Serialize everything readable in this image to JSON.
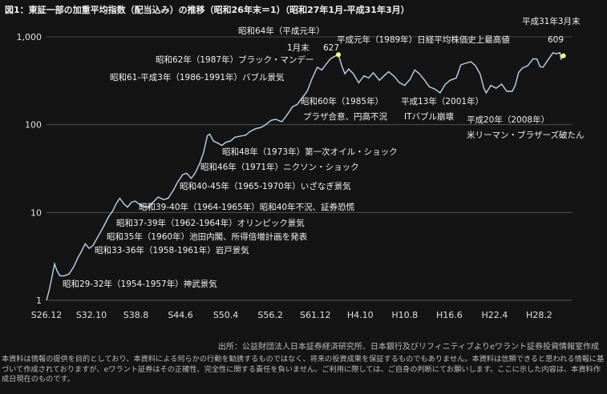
{
  "title": "図1：東証一部の加重平均指数（配当込み）の推移（昭和26年末＝1）（昭和27年1月-平成31年3月）",
  "source": "出所：公益財団法人日本証券経済研究所、日本銀行及びリフィニティブよりeワラント証券投資情報室作成",
  "disclaimer": "本資料は情報の提供を目的としており、本資料による何らかの行動を勧誘するものではなく、将来の投資成果を保証するものでもありません。本資料は信頼できると思われる情報に基づいて作成されておりますが、eワラント証券はその正確性、完全性に関する責任を負いません。ご利用に際しては、ご自身の判断にてお願いします。ここに示した内容は、本資料作成日現在のものです。",
  "colors": {
    "line": "#b8d4f0",
    "marker": "#ffff80",
    "grid": "#5a5a5a",
    "background": "#141414"
  },
  "chart_data": {
    "type": "line",
    "y_scale": "log",
    "ylim": [
      1,
      1000
    ],
    "y_ticks": [
      "1",
      "10",
      "100",
      "1,000"
    ],
    "x_ticks": [
      "S26.12",
      "S32.10",
      "S38.8",
      "S44.6",
      "S50.4",
      "S56.2",
      "S61.12",
      "H4.10",
      "H10.8",
      "H16.6",
      "H22.4",
      "H28.2"
    ],
    "series": [
      {
        "values": [
          [
            1951.96,
            1.0
          ],
          [
            1952.3,
            1.3
          ],
          [
            1952.7,
            1.9
          ],
          [
            1953.0,
            2.6
          ],
          [
            1953.3,
            2.2
          ],
          [
            1953.7,
            1.9
          ],
          [
            1954.3,
            1.9
          ],
          [
            1954.9,
            2.0
          ],
          [
            1955.5,
            2.4
          ],
          [
            1956.0,
            3.0
          ],
          [
            1956.5,
            3.6
          ],
          [
            1957.0,
            4.4
          ],
          [
            1957.5,
            3.9
          ],
          [
            1958.0,
            4.2
          ],
          [
            1958.6,
            5.2
          ],
          [
            1959.0,
            6.0
          ],
          [
            1959.6,
            7.5
          ],
          [
            1960.0,
            8.8
          ],
          [
            1960.6,
            10.5
          ],
          [
            1961.0,
            12.5
          ],
          [
            1961.5,
            14.5
          ],
          [
            1962.0,
            12.6
          ],
          [
            1962.5,
            11.5
          ],
          [
            1963.0,
            13.0
          ],
          [
            1963.5,
            13.5
          ],
          [
            1964.0,
            12.5
          ],
          [
            1964.6,
            11.8
          ],
          [
            1965.2,
            11.5
          ],
          [
            1965.8,
            13.0
          ],
          [
            1966.5,
            15.0
          ],
          [
            1967.2,
            14.0
          ],
          [
            1967.8,
            14.5
          ],
          [
            1968.5,
            18.0
          ],
          [
            1969.0,
            22.0
          ],
          [
            1969.7,
            27.0
          ],
          [
            1970.2,
            28.0
          ],
          [
            1970.8,
            24.5
          ],
          [
            1971.3,
            28.0
          ],
          [
            1971.9,
            36.0
          ],
          [
            1972.4,
            48.0
          ],
          [
            1972.9,
            75.0
          ],
          [
            1973.2,
            78.0
          ],
          [
            1973.7,
            65.0
          ],
          [
            1974.2,
            62.0
          ],
          [
            1974.8,
            58.0
          ],
          [
            1975.3,
            63.0
          ],
          [
            1975.9,
            65.0
          ],
          [
            1976.5,
            72.0
          ],
          [
            1977.2,
            74.0
          ],
          [
            1977.9,
            76.0
          ],
          [
            1978.5,
            84.0
          ],
          [
            1979.2,
            90.0
          ],
          [
            1979.9,
            93.0
          ],
          [
            1980.5,
            100.0
          ],
          [
            1981.2,
            112.0
          ],
          [
            1981.8,
            115.0
          ],
          [
            1982.6,
            108.0
          ],
          [
            1983.3,
            130.0
          ],
          [
            1984.0,
            160.0
          ],
          [
            1984.6,
            170.0
          ],
          [
            1985.2,
            200.0
          ],
          [
            1985.9,
            240.0
          ],
          [
            1986.5,
            330.0
          ],
          [
            1987.2,
            450.0
          ],
          [
            1987.8,
            420.0
          ],
          [
            1988.3,
            480.0
          ],
          [
            1988.9,
            560.0
          ],
          [
            1989.5,
            600.0
          ],
          [
            1989.96,
            627.0
          ],
          [
            1990.4,
            470.0
          ],
          [
            1990.8,
            380.0
          ],
          [
            1991.3,
            430.0
          ],
          [
            1991.9,
            380.0
          ],
          [
            1992.6,
            300.0
          ],
          [
            1993.3,
            360.0
          ],
          [
            1993.9,
            340.0
          ],
          [
            1994.5,
            390.0
          ],
          [
            1995.3,
            320.0
          ],
          [
            1995.9,
            360.0
          ],
          [
            1996.5,
            400.0
          ],
          [
            1997.3,
            350.0
          ],
          [
            1997.9,
            300.0
          ],
          [
            1998.6,
            280.0
          ],
          [
            1999.3,
            330.0
          ],
          [
            1999.9,
            420.0
          ],
          [
            2000.5,
            380.0
          ],
          [
            2001.2,
            320.0
          ],
          [
            2001.8,
            270.0
          ],
          [
            2002.5,
            255.0
          ],
          [
            2003.2,
            230.0
          ],
          [
            2003.9,
            290.0
          ],
          [
            2004.5,
            320.0
          ],
          [
            2005.3,
            340.0
          ],
          [
            2005.9,
            480.0
          ],
          [
            2006.5,
            500.0
          ],
          [
            2007.2,
            520.0
          ],
          [
            2007.8,
            470.0
          ],
          [
            2008.4,
            380.0
          ],
          [
            2008.9,
            260.0
          ],
          [
            2009.2,
            230.0
          ],
          [
            2009.8,
            280.0
          ],
          [
            2010.5,
            260.0
          ],
          [
            2011.2,
            290.0
          ],
          [
            2011.9,
            240.0
          ],
          [
            2012.6,
            240.0
          ],
          [
            2012.99,
            280.0
          ],
          [
            2013.4,
            390.0
          ],
          [
            2013.9,
            440.0
          ],
          [
            2014.6,
            470.0
          ],
          [
            2015.3,
            560.0
          ],
          [
            2015.8,
            560.0
          ],
          [
            2016.2,
            460.0
          ],
          [
            2016.6,
            450.0
          ],
          [
            2017.2,
            540.0
          ],
          [
            2017.9,
            660.0
          ],
          [
            2018.3,
            640.0
          ],
          [
            2018.8,
            660.0
          ],
          [
            2018.95,
            560.0
          ],
          [
            2019.25,
            609.0
          ]
        ]
      }
    ],
    "labeled_points": [
      {
        "x": 1989.96,
        "y": 627,
        "label": "627",
        "note": "1月末"
      },
      {
        "x": 2019.25,
        "y": 609,
        "label": "609",
        "note": "平成31年3月末"
      }
    ],
    "annotations": [
      "昭和64年（平成元年）",
      "1月末",
      "627",
      "平成元年（1989年）日経平均株価史上最高値",
      "昭和62年（1987年）ブラック・マンデー",
      "昭和61-平成3年（1986-1991年）バブル景気",
      "昭和60年（1985年）",
      "プラザ合意、円高不況",
      "平成13年（2001年）",
      "ITバブル崩壊",
      "平成20年（2008年）",
      "米リーマン・ブラザーズ破たん",
      "昭和48年（1973年）第一次オイル・ショック",
      "昭和46年（1971年）ニクソン・ショック",
      "昭和40-45年（1965-1970年）いざなぎ景気",
      "昭和39-40年（1964-1965年）昭和40年不況、証券恐慌",
      "昭和37-39年（1962-1964年）オリンピック景気",
      "昭和35年（1960年）池田内閣、所得倍増計画を発表",
      "昭和33-36年（1958-1961年）岩戸景気",
      "昭和29-32年（1954-1957年）神武景気",
      "平成31年3月末",
      "609"
    ]
  }
}
